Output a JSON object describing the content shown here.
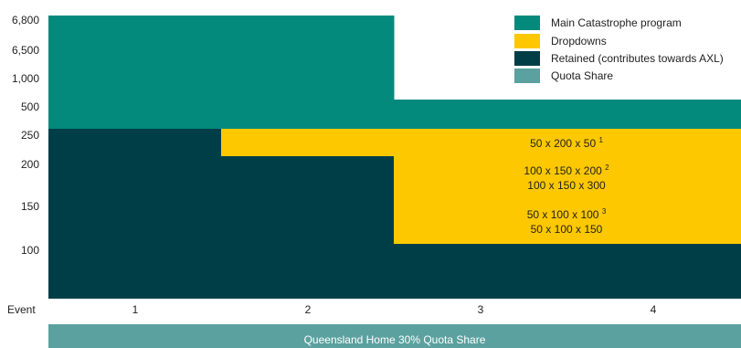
{
  "colors": {
    "main": "#038a7d",
    "dropdown": "#fdc800",
    "retained": "#003e47",
    "quota": "#5ba19f"
  },
  "chart_data": {
    "type": "stacked-layer-diagram",
    "y_axis_ticks": [
      "6,800",
      "6,500",
      "1,000",
      "500",
      "250",
      "200",
      "150",
      "100"
    ],
    "x_axis_title": "Event",
    "events": [
      "1",
      "2",
      "3",
      "4"
    ],
    "legend": [
      {
        "label": "Main Catastrophe program",
        "color_key": "main"
      },
      {
        "label": "Dropdowns",
        "color_key": "dropdown"
      },
      {
        "label": "Retained (contributes towards AXL)",
        "color_key": "retained"
      },
      {
        "label": "Quota Share",
        "color_key": "quota"
      }
    ],
    "retention_by_event": [
      {
        "event": "1",
        "retained_to": "250",
        "dropdown_to": null,
        "main_to": "6,800"
      },
      {
        "event": "2",
        "retained_to": "200",
        "dropdown_to": "250",
        "main_to": "6,800"
      },
      {
        "event": "3",
        "retained_to": "100",
        "dropdown_to": "250",
        "main_to": "500"
      },
      {
        "event": "4",
        "retained_to": "100",
        "dropdown_to": "250",
        "main_to": "500"
      }
    ],
    "dropdown_labels": [
      {
        "text": "50 x 200 x 50",
        "note": "1"
      },
      {
        "text": "100 x 150 x 200",
        "note": "2"
      },
      {
        "text": "100 x 150 x 300",
        "note": ""
      },
      {
        "text": "50 x 100 x 100",
        "note": "3"
      },
      {
        "text": "50 x 100 x 150",
        "note": ""
      }
    ],
    "quota_share_label": "Queensland Home 30% Quota Share"
  }
}
